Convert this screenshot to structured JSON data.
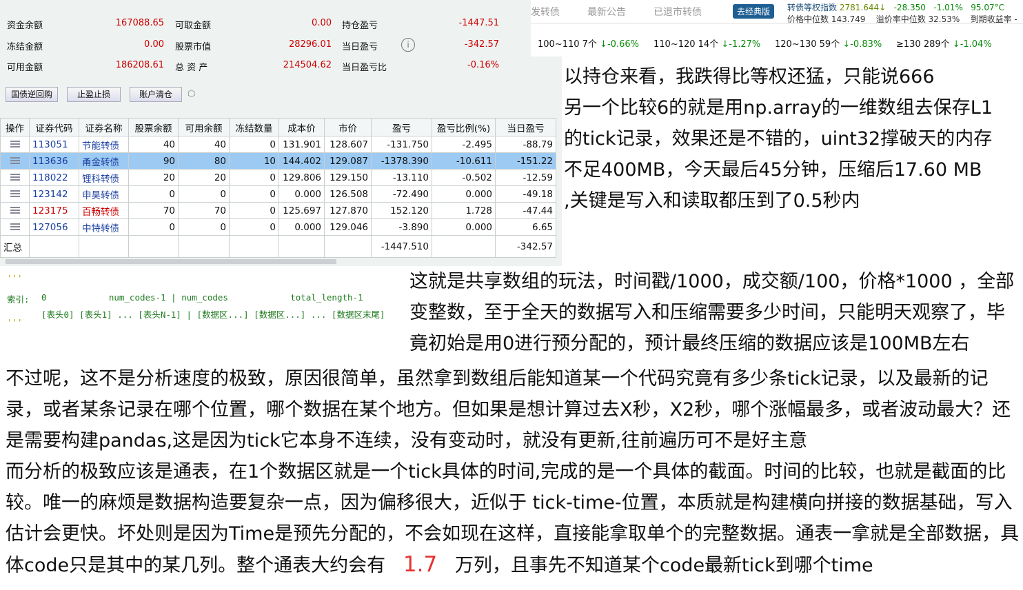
{
  "account": {
    "rows": [
      [
        {
          "l": "资金余额",
          "v": "167088.65"
        },
        {
          "l": "可取金额",
          "v": "0.00"
        },
        {
          "l": "持仓盈亏",
          "v": "-1447.51"
        }
      ],
      [
        {
          "l": "冻结金额",
          "v": "0.00"
        },
        {
          "l": "股票市值",
          "v": "28296.01"
        },
        {
          "l": "当日盈亏",
          "v": "-342.57"
        }
      ],
      [
        {
          "l": "可用金额",
          "v": "186208.61"
        },
        {
          "l": "总 资 产",
          "v": "214504.62"
        },
        {
          "l": "当日盈亏比",
          "v": "-0.16%"
        }
      ]
    ]
  },
  "buttons": [
    "国债逆回购",
    "止盈止损",
    "账户清仓"
  ],
  "table": {
    "headers": [
      "操作",
      "证券代码",
      "证券名称",
      "股票余额",
      "可用余额",
      "冻结数量",
      "成本价",
      "市价",
      "盈亏",
      "盈亏比例(%)",
      "当日盈亏"
    ],
    "rows": [
      [
        "113051",
        "节能转债",
        "40",
        "40",
        "0",
        "131.901",
        "128.607",
        "-131.750",
        "-2.495",
        "-88.79"
      ],
      [
        "113636",
        "甬金转债",
        "90",
        "80",
        "10",
        "144.402",
        "129.087",
        "-1378.390",
        "-10.611",
        "-151.22"
      ],
      [
        "118022",
        "锂科转债",
        "20",
        "20",
        "0",
        "129.806",
        "129.150",
        "-13.110",
        "-0.502",
        "-12.59"
      ],
      [
        "123142",
        "申昊转债",
        "0",
        "0",
        "0",
        "0.000",
        "126.508",
        "-72.490",
        "0.000",
        "-49.18"
      ],
      [
        "123175",
        "百畅转债",
        "70",
        "70",
        "0",
        "125.697",
        "127.870",
        "152.120",
        "1.728",
        "-47.44"
      ],
      [
        "127056",
        "中特转债",
        "0",
        "0",
        "0",
        "0.000",
        "129.046",
        "-3.890",
        "0.000",
        "6.65"
      ]
    ],
    "summary": {
      "label": "汇总",
      "pnl": "-1447.510",
      "day": "-342.57"
    }
  },
  "header": {
    "tabs": [
      "发转债",
      "最新公告",
      "已退市转债"
    ],
    "classic_btn": "去经典版",
    "index_label": "转债等权指数",
    "index_value": "2781.644↓",
    "index_change": "-28.350",
    "index_pct": "-1.01%",
    "temp": "95.07°C",
    "median_price": "价格中位数 143.749",
    "median_premium": "溢价率中位数 32.53%",
    "ytm": "到期收益率 -",
    "buckets": [
      {
        "r": "100~110 7个",
        "p": "↓-0.66%"
      },
      {
        "r": "110~120 14个",
        "p": "↓-1.27%"
      },
      {
        "r": "120~130 59个",
        "p": "↓-0.83%"
      },
      {
        "r": "≥130 289个",
        "p": "↓-1.04%"
      }
    ]
  },
  "code": {
    "q1": "'''",
    "line1a": "索引:",
    "line1b": "0            num_codes-1 | num_codes            total_length-1",
    "line2": "[表头0] [表头1] ... [表头N-1] | [数据区...] [数据区...] ... [数据区末尾]",
    "q2": "'''"
  },
  "para1": [
    "以持仓来看，我跌得比等权还猛，只能说666",
    "另一个比较6的就是用np.array的一维数组去保存L1",
    "的tick记录，效果还是不错的，uint32撑破天的内存",
    "不足400MB，今天最后45分钟，压缩后17.60 MB",
    ",关键是写入和读取都压到了0.5秒内"
  ],
  "para2": [
    "这就是共享数组的玩法，时间戳/1000，成交额/100，价格*1000 ，全部",
    "变整数，至于全天的数据写入和压缩需要多少时间，只能明天观察了，毕",
    "竟初始是用0进行预分配的，预计最终压缩的数据应该是100MB左右"
  ],
  "para3": [
    "不过呢，这不是分析速度的极致，原因很简单，虽然拿到数组后能知道某一个代码究竟有多少条tick记录，以及最新的记",
    "录，或者某条记录在哪个位置，哪个数据在某个地方。但如果是想计算过去X秒，X2秒，哪个涨幅最多，或者波动最大？还",
    "是需要构建pandas,这是因为tick它本身不连续，没有变动时，就没有更新,往前遍历可不是好主意",
    "而分析的极致应该是通表，在1个数据区就是一个tick具体的时间,完成的是一个具体的截面。时间的比较，也就是截面的比",
    "较。唯一的麻烦是数据构造要复杂一点，因为偏移很大，近似于 tick-time-位置，本质就是构建横向拼接的数据基础，写入",
    "估计会更快。坏处则是因为Time是预先分配的，不会如现在这样，直接能拿取单个的完整数据。通表一拿就是全部数据，具"
  ],
  "last_line": {
    "a": "体code只是其中的某几列。整个通表大约会有",
    "num": "1.7",
    "b": "万列，且事先不知道某个code最新tick到哪个time"
  }
}
